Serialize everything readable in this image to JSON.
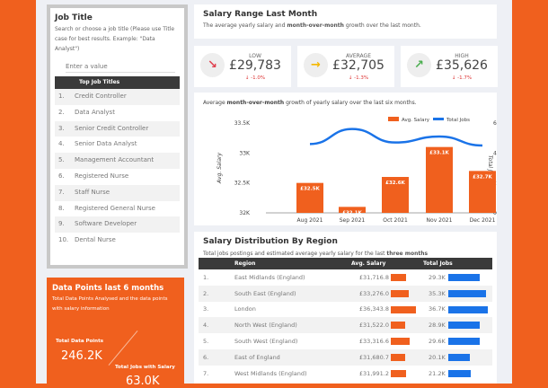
{
  "job_panel": {
    "title": "Job Title",
    "hint": "Search or choose a job title (Please use Title case for best results. Example: \"Data Analyst\")",
    "placeholder": "Enter a value",
    "table_header": "Top Job Titles",
    "items": [
      {
        "n": "1.",
        "t": "Credit Controller"
      },
      {
        "n": "2.",
        "t": "Data Analyst"
      },
      {
        "n": "3.",
        "t": "Senior Credit Controller"
      },
      {
        "n": "4.",
        "t": "Senior Data Analyst"
      },
      {
        "n": "5.",
        "t": "Management Accountant"
      },
      {
        "n": "6.",
        "t": "Registered Nurse"
      },
      {
        "n": "7.",
        "t": "Staff Nurse"
      },
      {
        "n": "8.",
        "t": "Registered General Nurse"
      },
      {
        "n": "9.",
        "t": "Software Developer"
      },
      {
        "n": "10.",
        "t": "Dental Nurse"
      }
    ]
  },
  "data_points": {
    "title": "Data Points last 6 months",
    "desc": "Total Data Points Analysed and the data points with salary information",
    "total_label": "Total Data Points",
    "total_value": "246.2K",
    "salary_label": "Total Jobs with Salary",
    "salary_value": "63.0K"
  },
  "salary_range": {
    "title": "Salary Range Last Month",
    "desc_pre": "The average yearly salary and ",
    "desc_bold": "month-over-month",
    "desc_post": " growth over the last month."
  },
  "kpis": [
    {
      "label": "LOW",
      "value": "£29,783",
      "delta": "↓ -1.0%",
      "icon": "trend-down-icon",
      "color": "#e0414f"
    },
    {
      "label": "AVERAGE",
      "value": "£32,705",
      "delta": "↓ -1.3%",
      "icon": "arrow-right-icon",
      "color": "#f5b800"
    },
    {
      "label": "HIGH",
      "value": "£35,626",
      "delta": "↓ -1.7%",
      "icon": "trend-up-icon",
      "color": "#4caf50"
    }
  ],
  "chart_desc": {
    "pre": "Average ",
    "bold": "month-over-month",
    "post": " growth of yearly salary over the last six months."
  },
  "chart_data": {
    "type": "bar+line",
    "categories": [
      "Aug 2021",
      "Sep 2021",
      "Oct 2021",
      "Nov 2021",
      "Dec 2021"
    ],
    "series": [
      {
        "name": "Avg. Salary",
        "type": "bar",
        "axis": "left",
        "values": [
          32500,
          32100,
          32600,
          33100,
          32700
        ],
        "labels": [
          "£32.5K",
          "£32.1K",
          "£32.6K",
          "£33.1K",
          "£32.7K"
        ],
        "color": "#f0601e"
      },
      {
        "name": "Total Jobs",
        "type": "line",
        "axis": "right",
        "values": [
          46000,
          56000,
          47000,
          51000,
          45000
        ],
        "color": "#1a73e8"
      }
    ],
    "ylabel": "Avg. Salary",
    "y2label": "Total Jobs",
    "ylim": [
      32000,
      33500
    ],
    "yticks": [
      "32K",
      "32.5K",
      "33K",
      "33.5K"
    ],
    "y2lim": [
      0,
      60000
    ],
    "y2ticks": [
      "0",
      "20K",
      "40K",
      "60K"
    ],
    "legend": "top-right"
  },
  "region": {
    "title": "Salary Distribution By Region",
    "desc_pre": "Total jobs postings and estimated average yearly salary for the last ",
    "desc_bold": "three months",
    "headers": [
      "",
      "Region",
      "Avg. Salary",
      "Total Jobs"
    ],
    "rows": [
      {
        "n": "1.",
        "r": "East Midlands (England)",
        "s": "£31,716.8",
        "sv": 31716.8,
        "j": "29.3K",
        "jv": 29.3
      },
      {
        "n": "2.",
        "r": "South East (England)",
        "s": "£33,276.0",
        "sv": 33276,
        "j": "35.3K",
        "jv": 35.3
      },
      {
        "n": "3.",
        "r": "London",
        "s": "£36,343.8",
        "sv": 36343.8,
        "j": "36.7K",
        "jv": 36.7
      },
      {
        "n": "4.",
        "r": "North West (England)",
        "s": "£31,522.0",
        "sv": 31522,
        "j": "28.9K",
        "jv": 28.9
      },
      {
        "n": "5.",
        "r": "South West (England)",
        "s": "£33,316.6",
        "sv": 33316.6,
        "j": "29.6K",
        "jv": 29.6
      },
      {
        "n": "6.",
        "r": "East of England",
        "s": "£31,680.7",
        "sv": 31680.7,
        "j": "20.1K",
        "jv": 20.1
      },
      {
        "n": "7.",
        "r": "West Midlands (England)",
        "s": "£31,991.2",
        "sv": 31991.2,
        "j": "21.2K",
        "jv": 21.2
      }
    ]
  }
}
